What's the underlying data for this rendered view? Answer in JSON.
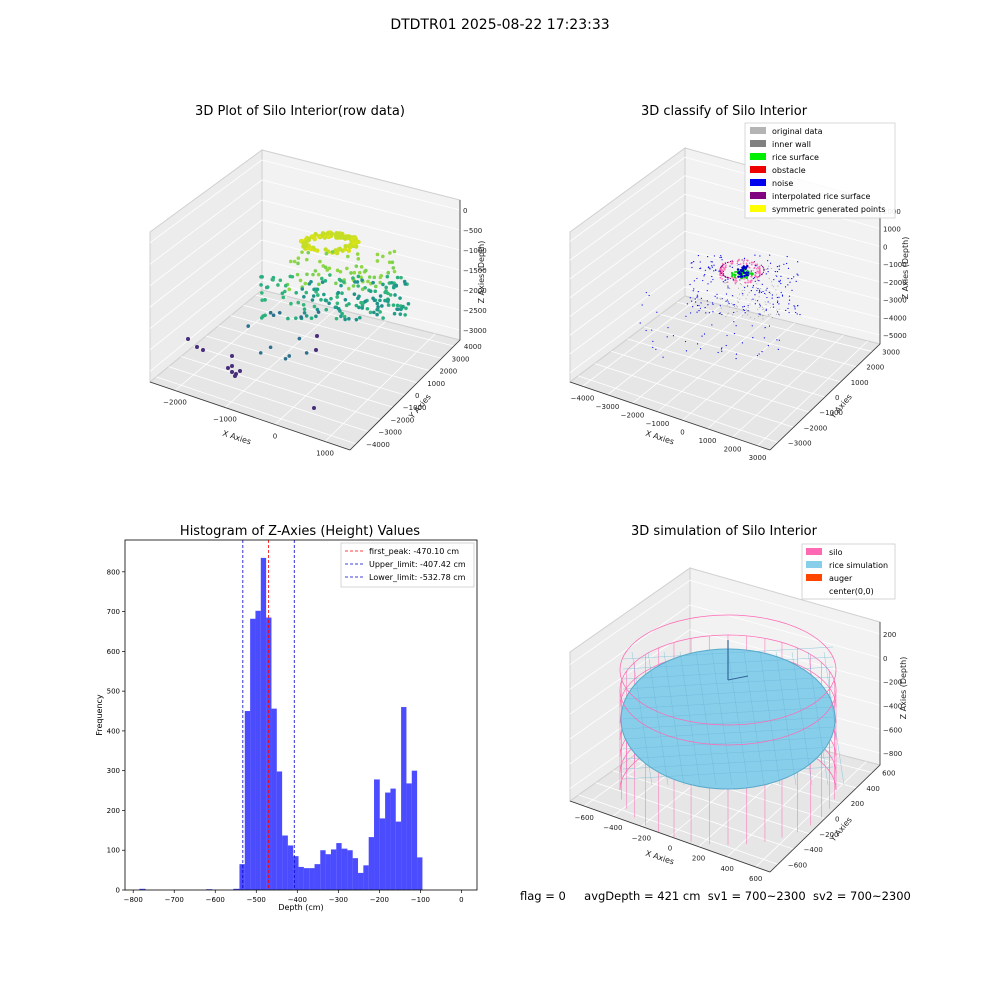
{
  "suptitle": "DTDTR01 2025-08-22 17:23:33",
  "panels": {
    "tl": {
      "title": "3D Plot of Silo Interior(row data)",
      "xlabel": "X Axies",
      "ylabel": "Y Axies",
      "zlabel": "Z Axies (Depth)",
      "xticks": [
        "−2000",
        "−1000",
        "0",
        "1000"
      ],
      "yticks": [
        "4000",
        "3000",
        "2000",
        "1000",
        "0",
        "−1000",
        "−2000",
        "−3000",
        "−4000"
      ],
      "zticks": [
        "0",
        "−500",
        "−1000",
        "−1500",
        "−2000",
        "−2500",
        "−3000"
      ]
    },
    "tr": {
      "title": "3D classify of Silo Interior",
      "xlabel": "X Axies",
      "ylabel": "Y Axies",
      "zlabel": "Z Axies (Depth)",
      "xticks": [
        "−4000",
        "−3000",
        "−2000",
        "−1000",
        "0",
        "1000",
        "2000",
        "3000"
      ],
      "yticks": [
        "3000",
        "2000",
        "1000",
        "0",
        "−1000",
        "−2000",
        "−3000"
      ],
      "zticks": [
        "2000",
        "1000",
        "0",
        "−1000",
        "−2000",
        "−3000",
        "−4000",
        "−5000"
      ],
      "legend": [
        {
          "label": "original data",
          "color": "#b4b4b4"
        },
        {
          "label": "inner wall",
          "color": "#808080"
        },
        {
          "label": "rice surface",
          "color": "#00ee00"
        },
        {
          "label": "obstacle",
          "color": "#ee0000"
        },
        {
          "label": "noise",
          "color": "#0000ee"
        },
        {
          "label": "interpolated rice surface",
          "color": "#800080"
        },
        {
          "label": "symmetric generated points",
          "color": "#ffff00"
        }
      ]
    },
    "br": {
      "title": "3D simulation of Silo Interior",
      "xlabel": "X Axies",
      "ylabel": "Y Axies",
      "zlabel": "Z Axies (Depth)",
      "xticks": [
        "−600",
        "−400",
        "−200",
        "0",
        "200",
        "400",
        "600"
      ],
      "yticks": [
        "600",
        "400",
        "200",
        "0",
        "−200",
        "−400",
        "−600"
      ],
      "zticks": [
        "200",
        "0",
        "−200",
        "−400",
        "−600",
        "−800"
      ],
      "legend": [
        {
          "label": "silo",
          "color": "#ff69b4"
        },
        {
          "label": "rice simulation",
          "color": "#87ceeb"
        },
        {
          "label": "auger",
          "color": "#ff4500"
        },
        {
          "label": "center(0,0)",
          "color": "#ffffff"
        }
      ]
    }
  },
  "footer": {
    "flag": "flag = 0",
    "avg": "avgDepth = 421 cm",
    "sv1": "sv1 = 700~2300",
    "sv2": "sv2 = 700~2300"
  },
  "chart_data": {
    "type": "bar",
    "title": "Histogram of Z-Axies (Height) Values",
    "xlabel": "Depth (cm)",
    "ylabel": "Frequency",
    "xlim": [
      -820,
      38
    ],
    "ylim": [
      0,
      880
    ],
    "xticks": [
      -800,
      -700,
      -600,
      -500,
      -400,
      -300,
      -200,
      -100,
      0
    ],
    "yticks": [
      0,
      100,
      200,
      300,
      400,
      500,
      600,
      700,
      800
    ],
    "bar_color": "#0000ff",
    "bar_alpha": 0.7,
    "bins": [
      [
        -785,
        -770,
        3
      ],
      [
        -622,
        -607,
        2
      ],
      [
        -556,
        -541,
        3
      ],
      [
        -541,
        -528,
        65
      ],
      [
        -528,
        -515,
        450
      ],
      [
        -515,
        -502,
        682
      ],
      [
        -502,
        -489,
        702
      ],
      [
        -489,
        -476,
        835
      ],
      [
        -476,
        -463,
        685
      ],
      [
        -463,
        -450,
        456
      ],
      [
        -450,
        -437,
        298
      ],
      [
        -437,
        -423,
        137
      ],
      [
        -423,
        -410,
        112
      ],
      [
        -410,
        -397,
        85
      ],
      [
        -397,
        -384,
        58
      ],
      [
        -384,
        -371,
        55
      ],
      [
        -371,
        -358,
        55
      ],
      [
        -358,
        -344,
        65
      ],
      [
        -344,
        -331,
        100
      ],
      [
        -331,
        -318,
        90
      ],
      [
        -318,
        -305,
        102
      ],
      [
        -305,
        -292,
        118
      ],
      [
        -292,
        -278,
        104
      ],
      [
        -278,
        -265,
        100
      ],
      [
        -265,
        -252,
        80
      ],
      [
        -252,
        -239,
        43
      ],
      [
        -239,
        -226,
        62
      ],
      [
        -226,
        -213,
        133
      ],
      [
        -213,
        -199,
        278
      ],
      [
        -199,
        -186,
        180
      ],
      [
        -186,
        -173,
        245
      ],
      [
        -173,
        -160,
        255
      ],
      [
        -160,
        -147,
        172
      ],
      [
        -147,
        -134,
        460
      ],
      [
        -134,
        -121,
        268
      ],
      [
        -121,
        -108,
        300
      ],
      [
        -108,
        -95,
        82
      ]
    ],
    "vlines": [
      {
        "x": -470.1,
        "color": "#ff0000",
        "label": "first_peak: -470.10 cm"
      },
      {
        "x": -407.42,
        "color": "#0000cc",
        "label": "Upper_limit: -407.42 cm"
      },
      {
        "x": -532.78,
        "color": "#0000cc",
        "label": "Lower_limit: -532.78 cm"
      }
    ]
  }
}
